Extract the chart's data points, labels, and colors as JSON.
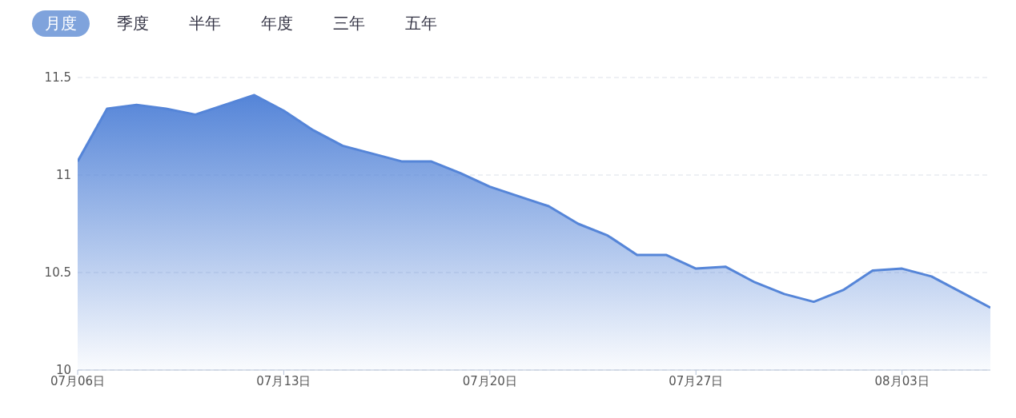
{
  "chart_data": {
    "type": "area",
    "annotations": [
      "月度",
      "季度",
      "半年",
      "年度",
      "三年",
      "五年"
    ],
    "x": [
      "--07-06",
      "--07-07",
      "--07-08",
      "--07-09",
      "--07-10",
      "--07-11",
      "--07-12",
      "--07-13",
      "--07-14",
      "--07-15",
      "--07-16",
      "--07-17",
      "--07-18",
      "--07-19",
      "--07-20",
      "--07-21",
      "--07-22",
      "--07-23",
      "--07-24",
      "--07-25",
      "--07-26",
      "--07-27",
      "--07-28",
      "--07-29",
      "--07-30",
      "--07-31",
      "--08-01",
      "--08-02",
      "--08-03",
      "--08-04",
      "--08-05",
      "--08-06"
    ],
    "series": [
      {
        "color": "#5585d8",
        "values": [
          11.07,
          11.34,
          11.36,
          11.34,
          11.31,
          11.36,
          11.41,
          11.33,
          11.23,
          11.15,
          11.11,
          11.07,
          11.07,
          11.01,
          10.94,
          10.89,
          10.84,
          10.75,
          10.69,
          10.59,
          10.59,
          10.52,
          10.53,
          10.45,
          10.39,
          10.35,
          10.41,
          10.51,
          10.52,
          10.48,
          10.4,
          10.32
        ]
      }
    ],
    "xlim": [
      "--07-06",
      "--08-06"
    ],
    "xticks": [
      {
        "value": "--07-06",
        "label": "07月06日"
      },
      {
        "value": "--07-13",
        "label": "07月13日"
      },
      {
        "value": "--07-20",
        "label": "07月20日"
      },
      {
        "value": "--07-27",
        "label": "07月27日"
      },
      {
        "value": "--08-03",
        "label": "08月03日"
      }
    ],
    "ylim": [
      10,
      11.5
    ],
    "yticks": [
      10,
      10.5,
      11,
      11.5
    ],
    "grid": "y",
    "marker": "none",
    "line_style": "solid",
    "legend": false
  }
}
